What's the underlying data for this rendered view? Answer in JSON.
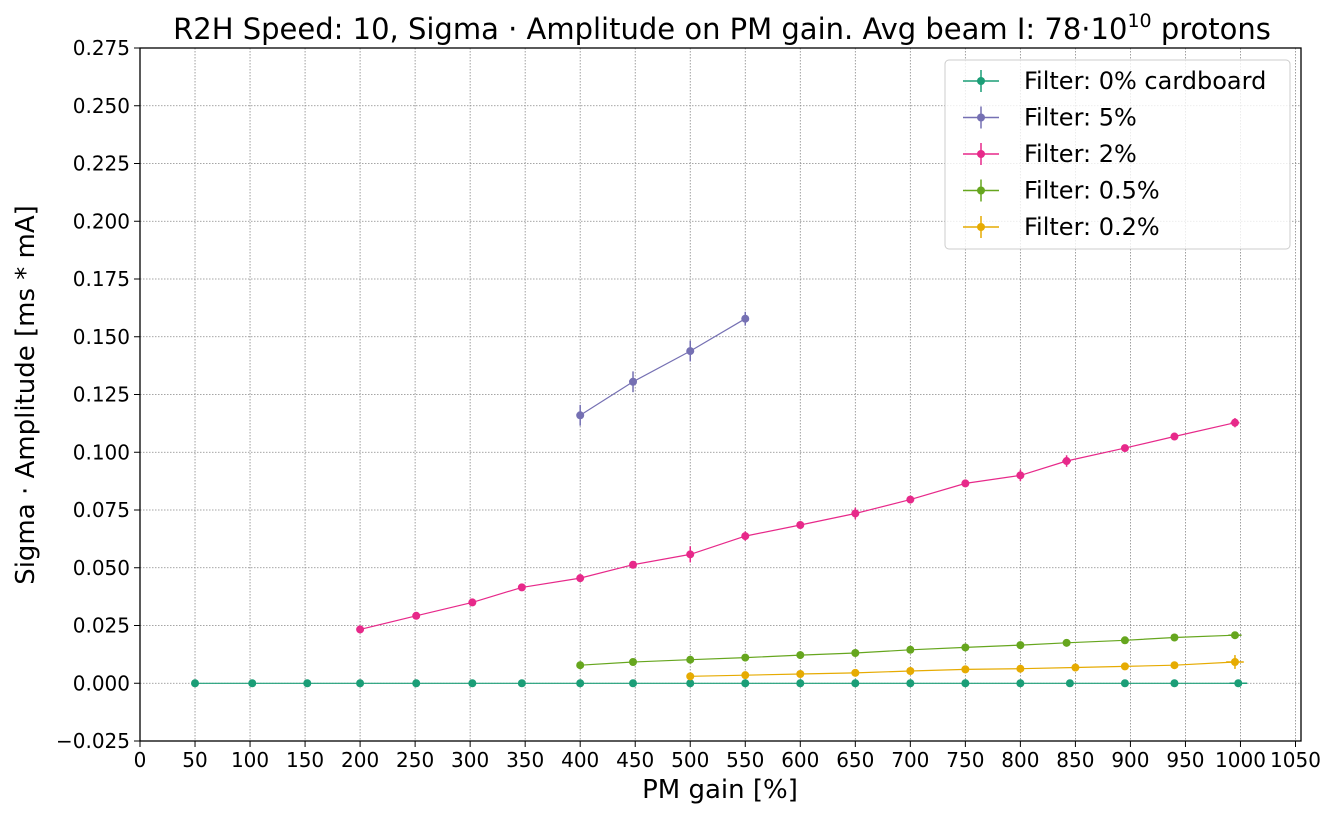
{
  "chart_data": {
    "type": "line",
    "title": {
      "main": "R2H Speed: 10, Sigma · Amplitude on PM gain. Avg beam I: 78·10",
      "exponent": "10",
      "suffix": " protons"
    },
    "xlabel": "PM gain [%]",
    "ylabel": "Sigma · Amplitude [ms * mA]",
    "xlim": [
      0,
      1055
    ],
    "ylim": [
      -0.025,
      0.275
    ],
    "x_ticks": [
      0,
      50,
      100,
      150,
      200,
      250,
      300,
      350,
      400,
      450,
      500,
      550,
      600,
      650,
      700,
      750,
      800,
      850,
      900,
      950,
      1000,
      1050
    ],
    "x_tick_labels": [
      "0",
      "50",
      "100",
      "150",
      "200",
      "250",
      "300",
      "350",
      "400",
      "450",
      "500",
      "550",
      "600",
      "650",
      "700",
      "750",
      "800",
      "850",
      "900",
      "950",
      "1000",
      "1050"
    ],
    "y_ticks": [
      -0.025,
      0.0,
      0.025,
      0.05,
      0.075,
      0.1,
      0.125,
      0.15,
      0.175,
      0.2,
      0.225,
      0.25,
      0.275
    ],
    "y_tick_labels": [
      "−0.025",
      "0.000",
      "0.025",
      "0.050",
      "0.075",
      "0.100",
      "0.125",
      "0.150",
      "0.175",
      "0.200",
      "0.225",
      "0.250",
      "0.275"
    ],
    "grid": true,
    "legend_position": "top-right",
    "series": [
      {
        "name": "Filter: 0% cardboard",
        "color": "#1b9e77",
        "x": [
          50,
          102,
          152,
          200,
          251,
          302,
          347,
          400,
          448,
          500,
          550,
          600,
          650,
          700,
          750,
          800,
          845,
          895,
          940,
          998
        ],
        "y": [
          0,
          0,
          0,
          0,
          0,
          0,
          0,
          0,
          0,
          0,
          0,
          0,
          0,
          0,
          0,
          0,
          0,
          0,
          0,
          0
        ],
        "yerr": [
          0.0015,
          0.0015,
          0.0015,
          0.0012,
          0.001,
          0.001,
          0.0015,
          0.001,
          0.001,
          0.001,
          0.001,
          0.001,
          0.001,
          0.001,
          0.001,
          0.001,
          0.001,
          0.001,
          0.001,
          0.001
        ],
        "xerr": [
          2,
          2,
          2,
          2,
          2,
          2,
          2,
          2,
          2,
          2,
          2,
          2,
          2,
          2,
          2,
          2,
          3,
          2,
          2,
          8
        ]
      },
      {
        "name": "Filter: 5%",
        "color": "#7570b3",
        "x": [
          400,
          448,
          500,
          550
        ],
        "y": [
          0.116,
          0.1305,
          0.1438,
          0.1578
        ],
        "yerr": [
          0.0045,
          0.0045,
          0.0045,
          0.003
        ],
        "xerr": [
          1,
          1,
          1,
          1
        ]
      },
      {
        "name": "Filter: 2%",
        "color": "#e7298a",
        "x": [
          200,
          251,
          302,
          347,
          400,
          448,
          500,
          550,
          600,
          650,
          700,
          750,
          800,
          842,
          895,
          940,
          995
        ],
        "y": [
          0.0233,
          0.0292,
          0.035,
          0.0415,
          0.0455,
          0.0513,
          0.0558,
          0.0637,
          0.0685,
          0.0735,
          0.0795,
          0.0865,
          0.09,
          0.0962,
          0.1018,
          0.1068,
          0.1128
        ],
        "yerr": [
          0.0012,
          0.0012,
          0.0012,
          0.0015,
          0.0012,
          0.0015,
          0.0035,
          0.002,
          0.0012,
          0.0025,
          0.0012,
          0.0012,
          0.0025,
          0.0025,
          0.0012,
          0.0015,
          0.002
        ],
        "xerr": [
          1,
          1,
          1,
          1,
          1,
          1,
          1,
          1,
          1,
          1,
          1,
          1,
          1,
          4,
          1,
          3,
          4
        ]
      },
      {
        "name": "Filter: 0.5%",
        "color": "#66a61e",
        "x": [
          400,
          448,
          500,
          550,
          600,
          650,
          700,
          750,
          800,
          842,
          895,
          940,
          995
        ],
        "y": [
          0.0078,
          0.0092,
          0.0102,
          0.0111,
          0.0122,
          0.0131,
          0.0145,
          0.0155,
          0.0165,
          0.0175,
          0.0186,
          0.0198,
          0.0208
        ],
        "yerr": [
          0.0008,
          0.0008,
          0.0008,
          0.0008,
          0.0008,
          0.0008,
          0.0008,
          0.0008,
          0.0008,
          0.0008,
          0.0008,
          0.0008,
          0.0008
        ],
        "xerr": [
          1,
          1,
          1,
          1,
          1,
          1,
          1,
          1,
          1,
          3,
          1,
          2,
          6
        ]
      },
      {
        "name": "Filter: 0.2%",
        "color": "#e6ab02",
        "x": [
          500,
          550,
          600,
          650,
          700,
          750,
          800,
          850,
          895,
          940,
          995
        ],
        "y": [
          0.003,
          0.0035,
          0.004,
          0.0045,
          0.0053,
          0.006,
          0.0063,
          0.0068,
          0.0073,
          0.0078,
          0.0092
        ],
        "yerr": [
          0.0006,
          0.0006,
          0.0006,
          0.0006,
          0.0006,
          0.0006,
          0.0006,
          0.0006,
          0.0006,
          0.0006,
          0.003
        ],
        "xerr": [
          1,
          1,
          1,
          1,
          1,
          1,
          1,
          3,
          1,
          2,
          8
        ]
      }
    ]
  }
}
